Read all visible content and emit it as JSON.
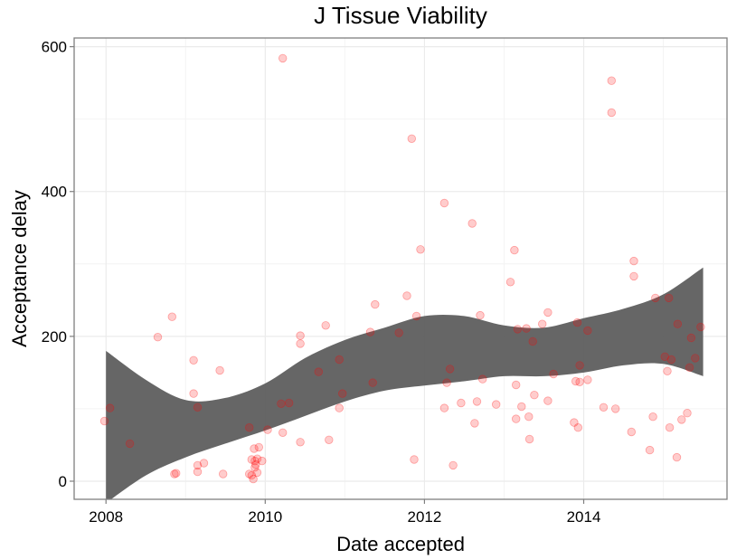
{
  "chart_data": {
    "type": "scatter",
    "title": "J Tissue Viability",
    "xlabel": "Date accepted",
    "ylabel": "Acceptance delay",
    "x_is_year": true,
    "xlim": [
      2007.6,
      2015.8
    ],
    "ylim": [
      -25,
      612
    ],
    "x_ticks": [
      2008,
      2010,
      2012,
      2014
    ],
    "x_tick_labels": [
      "2008",
      "2010",
      "2012",
      "2014"
    ],
    "y_ticks": [
      0,
      200,
      400,
      600
    ],
    "y_tick_labels": [
      "0",
      "200",
      "400",
      "600"
    ],
    "grid": true,
    "legend": "none",
    "point_color": "#ff0000",
    "band_color": "#595959",
    "points": [
      [
        2007.98,
        83
      ],
      [
        2008.05,
        101
      ],
      [
        2008.3,
        52
      ],
      [
        2008.65,
        199
      ],
      [
        2008.83,
        227
      ],
      [
        2008.86,
        10
      ],
      [
        2008.88,
        11
      ],
      [
        2009.1,
        167
      ],
      [
        2009.1,
        121
      ],
      [
        2009.15,
        102
      ],
      [
        2009.15,
        13
      ],
      [
        2009.15,
        22
      ],
      [
        2009.23,
        25
      ],
      [
        2009.43,
        153
      ],
      [
        2009.47,
        10
      ],
      [
        2009.8,
        74
      ],
      [
        2009.8,
        10
      ],
      [
        2009.83,
        8
      ],
      [
        2009.83,
        30
      ],
      [
        2009.85,
        3
      ],
      [
        2009.86,
        45
      ],
      [
        2009.87,
        28
      ],
      [
        2009.87,
        19
      ],
      [
        2009.88,
        23
      ],
      [
        2009.9,
        31
      ],
      [
        2009.9,
        12
      ],
      [
        2009.92,
        47
      ],
      [
        2009.96,
        28
      ],
      [
        2010.03,
        71
      ],
      [
        2010.2,
        107
      ],
      [
        2010.22,
        67
      ],
      [
        2010.22,
        584
      ],
      [
        2010.3,
        108
      ],
      [
        2010.44,
        201
      ],
      [
        2010.44,
        190
      ],
      [
        2010.44,
        54
      ],
      [
        2010.67,
        151
      ],
      [
        2010.76,
        215
      ],
      [
        2010.8,
        57
      ],
      [
        2010.93,
        168
      ],
      [
        2010.93,
        101
      ],
      [
        2010.97,
        121
      ],
      [
        2011.32,
        206
      ],
      [
        2011.35,
        136
      ],
      [
        2011.38,
        244
      ],
      [
        2011.68,
        205
      ],
      [
        2011.78,
        256
      ],
      [
        2011.84,
        473
      ],
      [
        2011.87,
        30
      ],
      [
        2011.9,
        228
      ],
      [
        2011.95,
        320
      ],
      [
        2012.25,
        384
      ],
      [
        2012.25,
        101
      ],
      [
        2012.28,
        136
      ],
      [
        2012.32,
        155
      ],
      [
        2012.36,
        22
      ],
      [
        2012.46,
        108
      ],
      [
        2012.6,
        356
      ],
      [
        2012.63,
        80
      ],
      [
        2012.66,
        110
      ],
      [
        2012.7,
        229
      ],
      [
        2012.73,
        141
      ],
      [
        2012.9,
        106
      ],
      [
        2013.08,
        275
      ],
      [
        2013.13,
        319
      ],
      [
        2013.15,
        86
      ],
      [
        2013.15,
        133
      ],
      [
        2013.17,
        210
      ],
      [
        2013.22,
        103
      ],
      [
        2013.28,
        211
      ],
      [
        2013.31,
        89
      ],
      [
        2013.32,
        58
      ],
      [
        2013.36,
        193
      ],
      [
        2013.38,
        119
      ],
      [
        2013.48,
        217
      ],
      [
        2013.55,
        233
      ],
      [
        2013.55,
        111
      ],
      [
        2013.62,
        148
      ],
      [
        2013.88,
        81
      ],
      [
        2013.9,
        138
      ],
      [
        2013.92,
        219
      ],
      [
        2013.93,
        74
      ],
      [
        2013.95,
        137
      ],
      [
        2013.95,
        160
      ],
      [
        2014.05,
        140
      ],
      [
        2014.05,
        208
      ],
      [
        2014.25,
        102
      ],
      [
        2014.35,
        553
      ],
      [
        2014.35,
        509
      ],
      [
        2014.4,
        100
      ],
      [
        2014.6,
        68
      ],
      [
        2014.63,
        304
      ],
      [
        2014.63,
        283
      ],
      [
        2014.83,
        43
      ],
      [
        2014.87,
        89
      ],
      [
        2014.9,
        253
      ],
      [
        2015.02,
        172
      ],
      [
        2015.05,
        152
      ],
      [
        2015.07,
        253
      ],
      [
        2015.08,
        74
      ],
      [
        2015.1,
        168
      ],
      [
        2015.17,
        33
      ],
      [
        2015.18,
        217
      ],
      [
        2015.23,
        85
      ],
      [
        2015.3,
        94
      ],
      [
        2015.33,
        157
      ],
      [
        2015.35,
        198
      ],
      [
        2015.4,
        170
      ],
      [
        2015.47,
        213
      ]
    ],
    "band": {
      "x": [
        2008.0,
        2008.5,
        2009.0,
        2009.5,
        2010.0,
        2010.5,
        2011.0,
        2011.5,
        2012.0,
        2012.5,
        2013.0,
        2013.5,
        2014.0,
        2014.5,
        2015.0,
        2015.5
      ],
      "upper": [
        180,
        140,
        112,
        115,
        135,
        170,
        195,
        212,
        228,
        228,
        215,
        212,
        225,
        238,
        258,
        295
      ],
      "lower": [
        -30,
        8,
        33,
        52,
        70,
        90,
        110,
        125,
        132,
        138,
        145,
        145,
        150,
        160,
        162,
        145
      ]
    }
  }
}
